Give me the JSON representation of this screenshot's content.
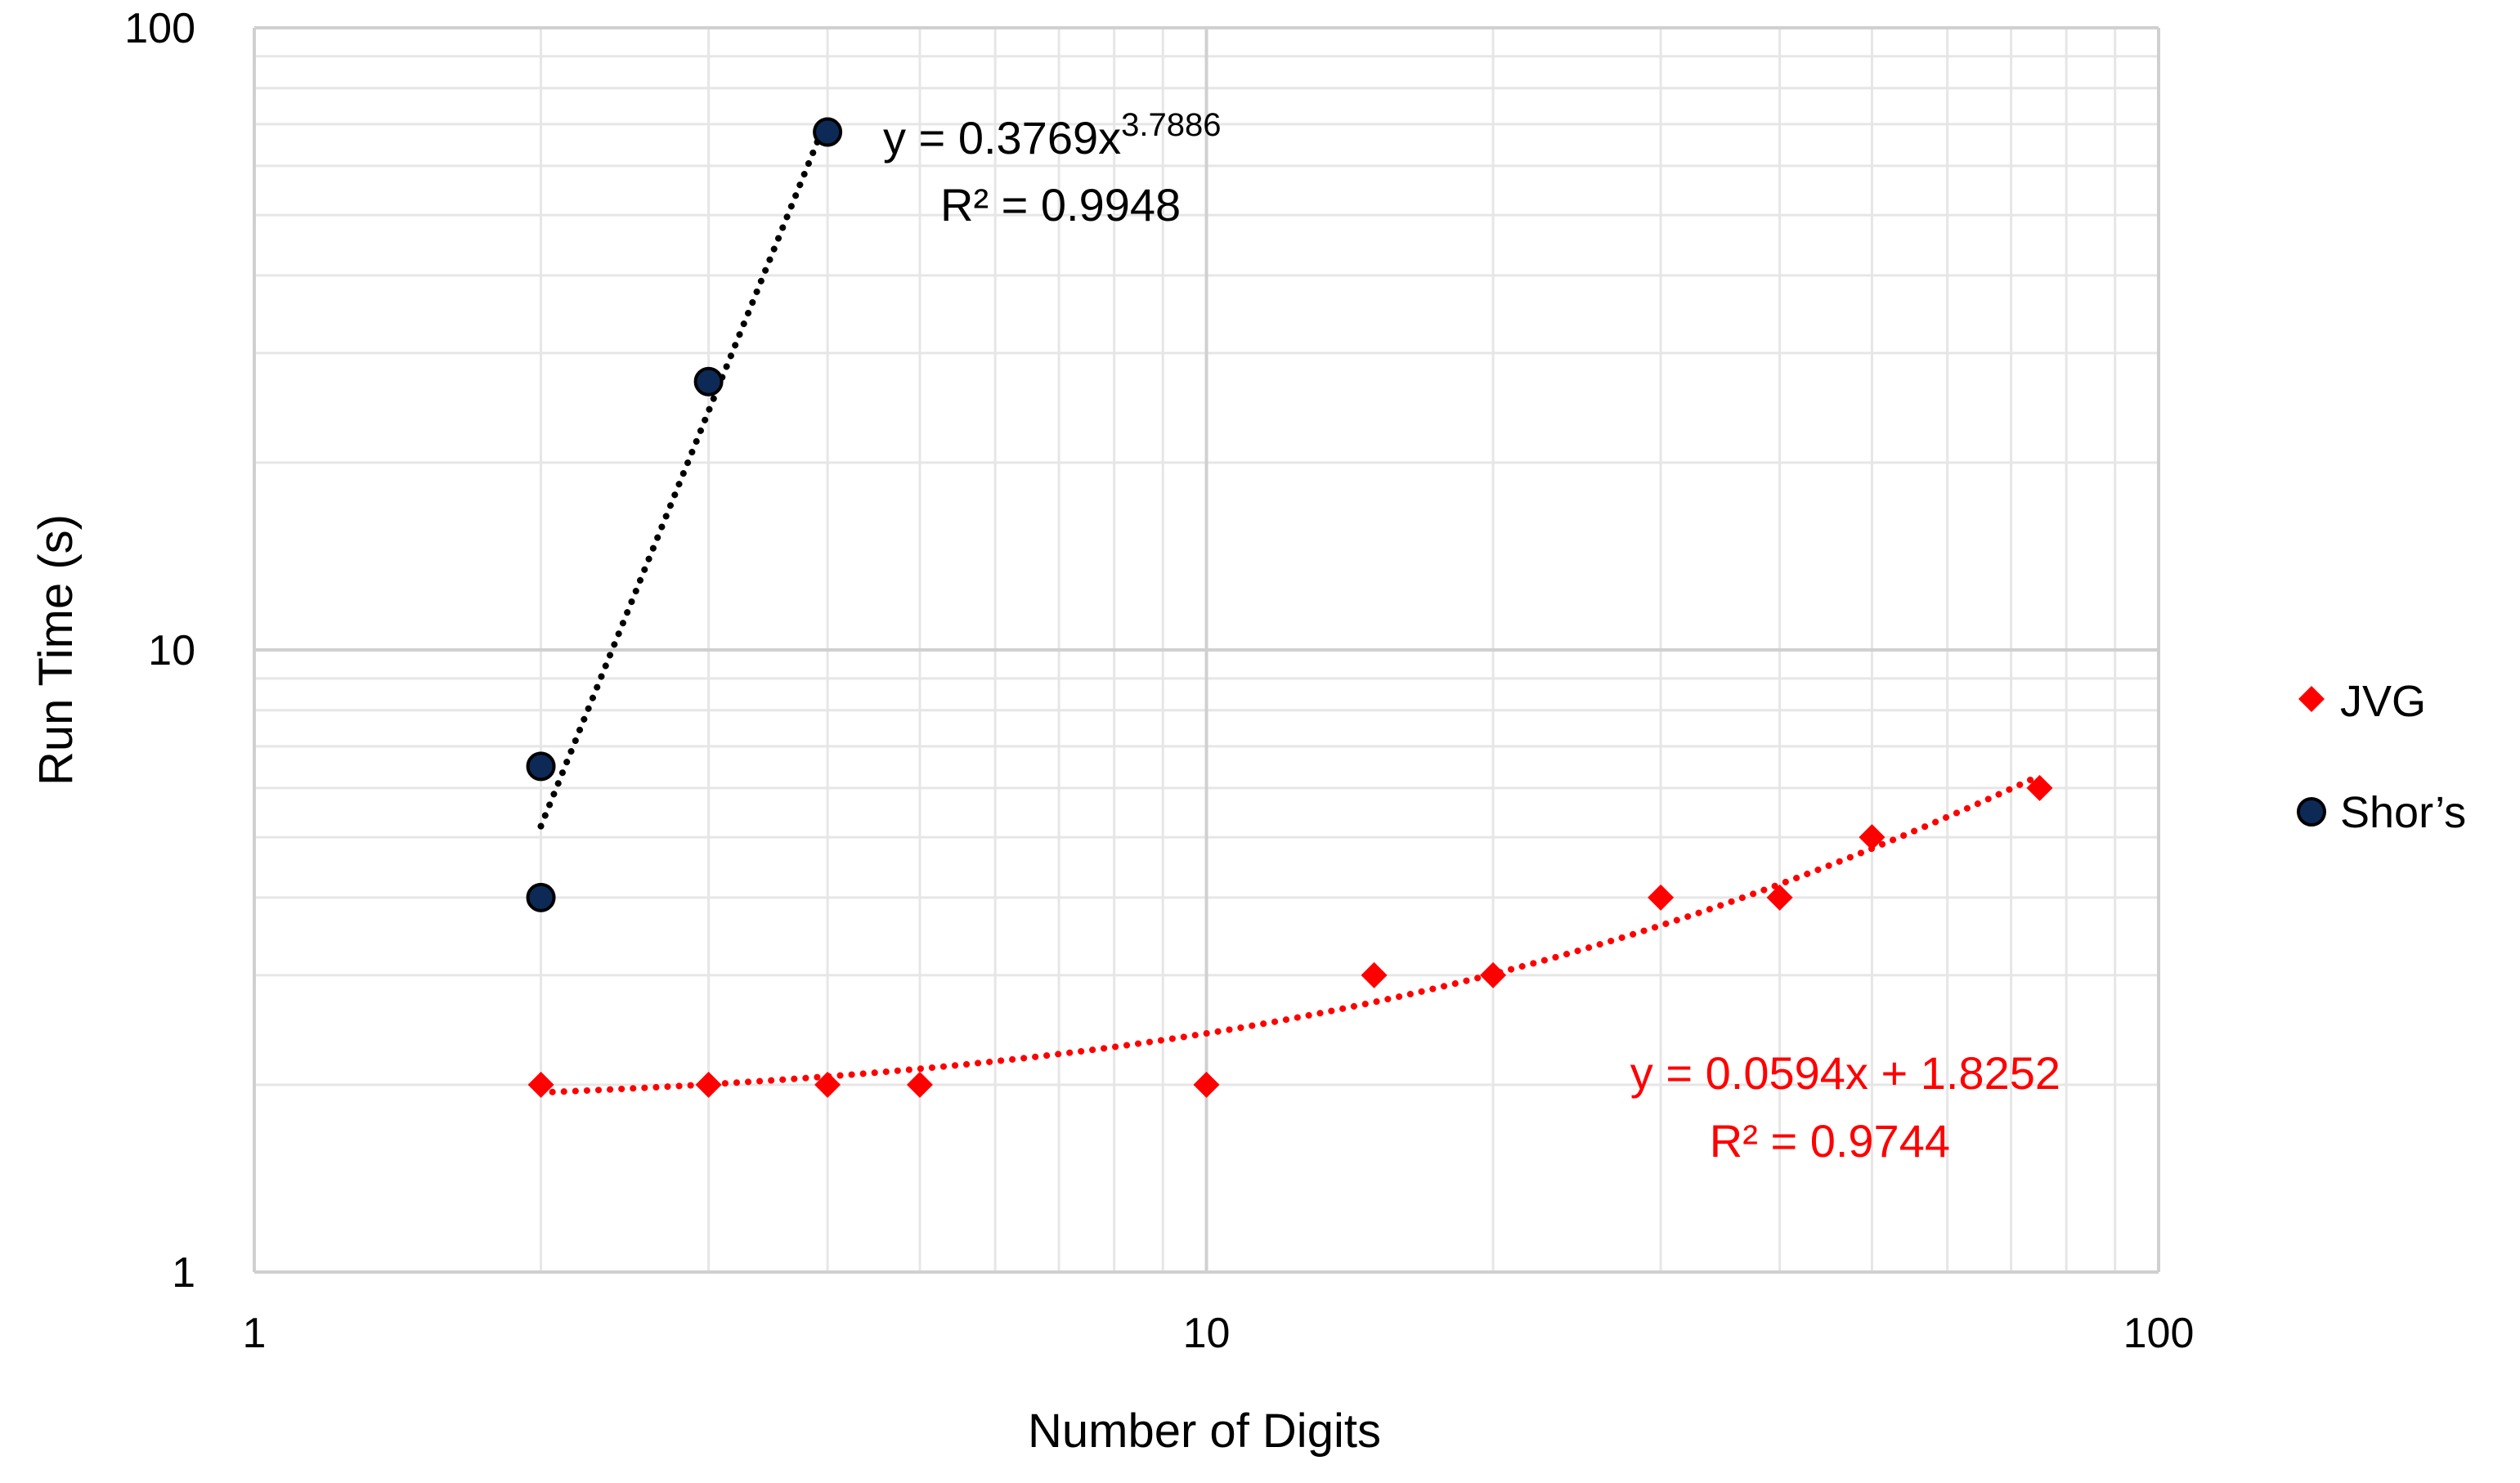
{
  "chart_data": {
    "type": "scatter",
    "xlabel": "Number of Digits",
    "ylabel": "Run Time (s)",
    "x_scale": "log",
    "y_scale": "log",
    "xlim": [
      1,
      100
    ],
    "ylim": [
      1,
      100
    ],
    "x_ticks": [
      "1",
      "10",
      "100"
    ],
    "y_ticks": [
      "1",
      "10",
      "100"
    ],
    "grid": true,
    "legend_position": "right",
    "series": [
      {
        "name": "JVG",
        "marker": "diamond",
        "color": "#ff0000",
        "points": [
          {
            "x": 2,
            "y": 2
          },
          {
            "x": 3,
            "y": 2
          },
          {
            "x": 4,
            "y": 2
          },
          {
            "x": 5,
            "y": 2
          },
          {
            "x": 10,
            "y": 2
          },
          {
            "x": 15,
            "y": 3
          },
          {
            "x": 20,
            "y": 3
          },
          {
            "x": 30,
            "y": 4
          },
          {
            "x": 40,
            "y": 4
          },
          {
            "x": 50,
            "y": 5
          },
          {
            "x": 75,
            "y": 6
          }
        ],
        "trendline": {
          "kind": "linear",
          "slope": 0.0594,
          "intercept": 1.8252,
          "x_range": [
            2,
            75
          ],
          "equation": "y = 0.0594x + 1.8252",
          "r2_text": "R² = 0.9744"
        }
      },
      {
        "name": "Shor’s",
        "marker": "circle",
        "color": "#0d2a57",
        "points": [
          {
            "x": 2,
            "y": 4
          },
          {
            "x": 2,
            "y": 6.5
          },
          {
            "x": 3,
            "y": 27
          },
          {
            "x": 4,
            "y": 68
          }
        ],
        "trendline": {
          "kind": "power",
          "coefficient": 0.3769,
          "exponent": 3.7886,
          "x_range": [
            2,
            4
          ],
          "equation_base": "y = 0.3769x",
          "equation_exponent": "3.7886",
          "r2_text": "R² = 0.9948"
        }
      }
    ]
  }
}
